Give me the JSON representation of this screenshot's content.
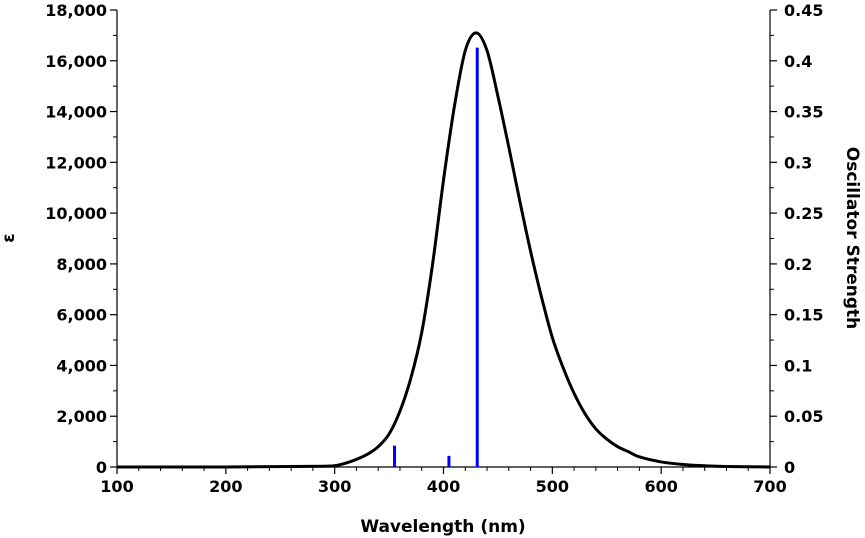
{
  "chart_data": {
    "type": "line",
    "xlabel": "Wavelength (nm)",
    "ylabel_left": "ε",
    "ylabel_right": "Oscillator Strength",
    "xlim": [
      100,
      700
    ],
    "ylim_left": [
      0,
      18000
    ],
    "ylim_right": [
      0,
      0.45
    ],
    "x_ticks": [
      100,
      200,
      300,
      400,
      500,
      600,
      700
    ],
    "x_tick_labels": [
      "100",
      "200",
      "300",
      "400",
      "500",
      "600",
      "700"
    ],
    "y_left_ticks": [
      0,
      2000,
      4000,
      6000,
      8000,
      10000,
      12000,
      14000,
      16000,
      18000
    ],
    "y_left_tick_labels": [
      "0",
      "2,000",
      "4,000",
      "6,000",
      "8,000",
      "10,000",
      "12,000",
      "14,000",
      "16,000",
      "18,000"
    ],
    "y_right_ticks": [
      0,
      0.05,
      0.1,
      0.15,
      0.2,
      0.25,
      0.3,
      0.35,
      0.4,
      0.45
    ],
    "y_right_tick_labels": [
      "0",
      "0.05",
      "0.1",
      "0.15",
      "0.2",
      "0.25",
      "0.3",
      "0.35",
      "0.4",
      "0.45"
    ],
    "grid": false,
    "series": [
      {
        "type": "line",
        "axis": "left",
        "color": "#000000",
        "x": [
          100,
          200,
          260,
          290,
          300,
          310,
          320,
          330,
          340,
          350,
          360,
          370,
          380,
          390,
          400,
          410,
          420,
          430,
          440,
          450,
          460,
          470,
          480,
          490,
          500,
          510,
          520,
          530,
          540,
          550,
          560,
          570,
          580,
          600,
          620,
          640,
          660,
          700
        ],
        "y": [
          0,
          0,
          20,
          30,
          50,
          150,
          300,
          500,
          800,
          1300,
          2200,
          3500,
          5300,
          8000,
          11300,
          14200,
          16400,
          17100,
          16400,
          14600,
          12600,
          10500,
          8500,
          6700,
          5100,
          3900,
          2900,
          2100,
          1500,
          1100,
          800,
          600,
          400,
          200,
          100,
          50,
          20,
          0
        ]
      },
      {
        "type": "stick",
        "axis": "right",
        "color": "#0000ff",
        "x": [
          355,
          405,
          431
        ],
        "y": [
          0.021,
          0.011,
          0.413
        ]
      }
    ]
  }
}
